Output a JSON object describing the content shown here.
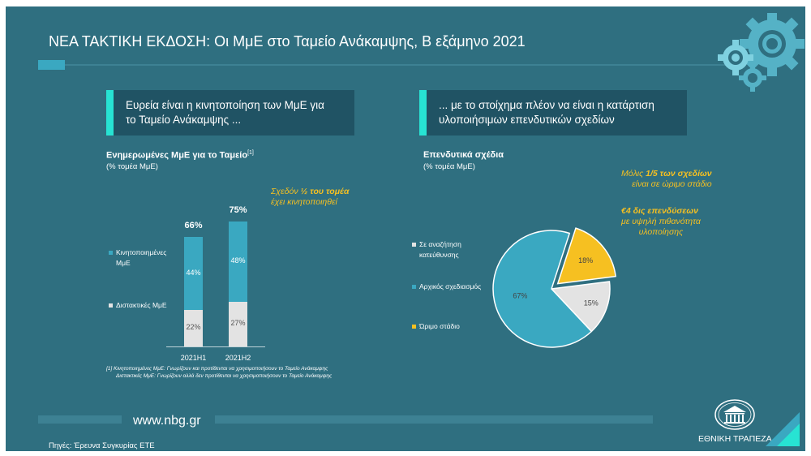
{
  "title": "ΝΕΑ ΤΑΚΤΙΚΗ ΕΚΔΟΣΗ: Οι ΜμΕ στο Ταμείο Ανάκαμψης, Β εξάμηνο 2021",
  "callout_left": [
    "Ευρεία είναι η κινητοποίηση των ΜμΕ για",
    "το Ταμείο Ανάκαμψης ..."
  ],
  "callout_right": [
    "... με το στοίχημα πλέον να είναι η κατάρτιση",
    "υλοποιήσιμων επενδυτικών σχεδίων"
  ],
  "colors": {
    "blue": "#3aa8c1",
    "grey": "#e3e3e3",
    "yellow": "#f6c021",
    "panel": "#2f6f80"
  },
  "icons": [
    "gears-icon",
    "bank-logo-icon"
  ],
  "chart_data": [
    {
      "type": "bar",
      "title": "Ενημερωμένες ΜμΕ για το Ταμείο",
      "title_sup": "[1]",
      "subtitle": "(% τομέα ΜμΕ)",
      "categories": [
        "2021H1",
        "2021H2"
      ],
      "series": [
        {
          "name": "Διστακτικές ΜμΕ",
          "values": [
            22,
            27
          ],
          "labels": [
            "22%",
            "27%"
          ]
        },
        {
          "name_lines": [
            "Κινητοποιημένες",
            "ΜμΕ"
          ],
          "values": [
            44,
            48
          ],
          "labels": [
            "44%",
            "48%"
          ]
        }
      ],
      "totals": [
        "66%",
        "75%"
      ],
      "stacked": true,
      "annotation": {
        "pre": "Σχεδόν ",
        "bold": "½ του τομέα",
        "line2": "έχει κινητοποιηθεί"
      },
      "footnotes": [
        "[1] Κινητοποιημένες ΜμΕ: Γνωρίζουν και προτίθενται να χρησιμοποιήσουν το Ταμείο Ανάκαμψης",
        "Διστακτικές ΜμΕ: Γνωρίζουν αλλά δεν προτίθενται να χρησιμοποιήσουν το Ταμείο Ανάκαμψης"
      ]
    },
    {
      "type": "pie",
      "title": "Επενδυτικά σχέδια",
      "subtitle": "(% τομέα ΜμΕ)",
      "slices": [
        {
          "name": "Σε αναζήτηση κατεύθυνσης",
          "name_lines": [
            "Σε αναζήτηση",
            "κατεύθυνσης"
          ],
          "value": 0,
          "label": ""
        },
        {
          "name": "Αρχικός σχεδιασμός",
          "value": 67,
          "label": "67%"
        },
        {
          "name": "Ώριμο στάδιο",
          "value": 18,
          "label": "18%"
        },
        {
          "name": "",
          "value": 15,
          "label": "15%"
        }
      ],
      "annotation1": {
        "pre": "Μόλις ",
        "bold": "1/5 των σχεδίων",
        "line2": "είναι σε ώριμο στάδιο"
      },
      "annotation2": {
        "bold": "€4 δις επενδύσεων",
        "line2": "με υψηλή πιθανότητα",
        "line3": "υλοποίησης"
      }
    }
  ],
  "website": "www.nbg.gr",
  "source": "Πηγές: Έρευνα Συγκυρίας ΕΤΕ",
  "bank_name": "ΕΘΝΙΚΗ ΤΡΑΠΕΖΑ"
}
